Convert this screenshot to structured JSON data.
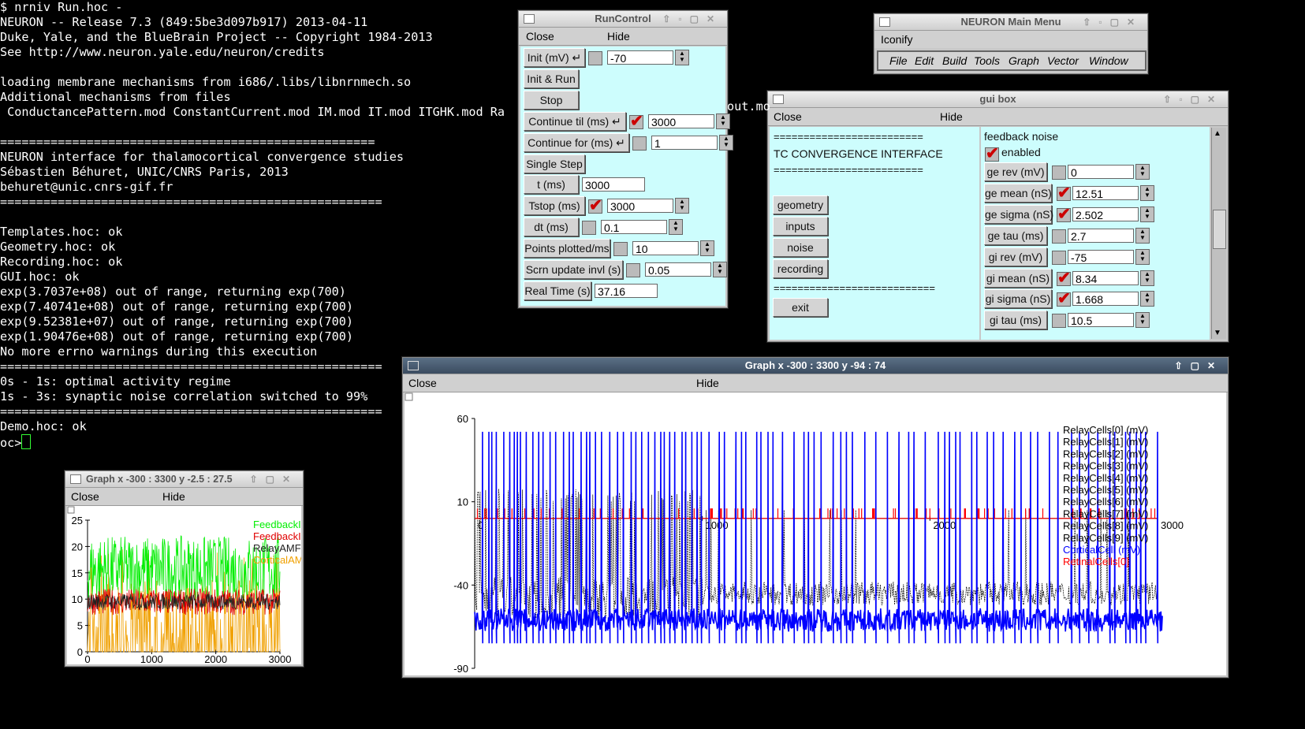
{
  "terminal": {
    "lines": [
      "$ nrniv Run.hoc -",
      "NEURON -- Release 7.3 (849:5be3d097b917) 2013-04-11",
      "Duke, Yale, and the BlueBrain Project -- Copyright 1984-2013",
      "See http://www.neuron.yale.edu/neuron/credits",
      "",
      "loading membrane mechanisms from i686/.libs/libnrnmech.so",
      "Additional mechanisms from files",
      " ConductancePattern.mod ConstantCurrent.mod IM.mod IT.mod ITGHK.mod Ra",
      "",
      "====================================================",
      "NEURON interface for thalamocortical convergence studies",
      "Sébastien Béhuret, UNIC/CNRS Paris, 2013",
      "behuret@unic.cnrs-gif.fr",
      "=====================================================",
      "",
      "Templates.hoc: ok",
      "Geometry.hoc: ok",
      "Recording.hoc: ok",
      "GUI.hoc: ok",
      "exp(3.7037e+08) out of range, returning exp(700)",
      "exp(7.40741e+08) out of range, returning exp(700)",
      "exp(9.52381e+07) out of range, returning exp(700)",
      "exp(1.90476e+08) out of range, returning exp(700)",
      "No more errno warnings during this execution",
      "=====================================================",
      "0s - 1s: optimal activity regime",
      "1s - 3s: synaptic noise correlation switched to 99%",
      "=====================================================",
      "Demo.hoc: ok"
    ],
    "prompt": "oc>",
    "overflow_text": "out.mo"
  },
  "run_control": {
    "title": "RunControl",
    "close": "Close",
    "hide": "Hide",
    "rows": [
      {
        "label": "Init (mV) ↵",
        "value": "-70",
        "check": false
      },
      {
        "label": "Init & Run"
      },
      {
        "label": "Stop"
      },
      {
        "label": "Continue til (ms) ↵",
        "value": "3000",
        "check": true
      },
      {
        "label": "Continue for (ms) ↵",
        "value": "1",
        "check": false
      },
      {
        "label": "Single Step"
      },
      {
        "label": "t (ms)",
        "value": "3000"
      },
      {
        "label": "Tstop (ms)",
        "value": "3000",
        "check": true
      },
      {
        "label": "dt (ms)",
        "value": "0.1",
        "check": false
      },
      {
        "label": "Points plotted/ms",
        "value": "10",
        "check": false
      },
      {
        "label": "Scrn update invl (s)",
        "value": "0.05",
        "check": false
      },
      {
        "label": "Real Time (s)",
        "value": "37.16"
      }
    ]
  },
  "main_menu": {
    "title": "NEURON Main Menu",
    "iconify": "Iconify",
    "items": [
      "File",
      "Edit",
      "Build",
      "Tools",
      "Graph",
      "Vector",
      "Window"
    ]
  },
  "gui_box": {
    "title": "gui box",
    "close": "Close",
    "hide": "Hide",
    "sep": "=========================",
    "sep2": "===========================",
    "heading": "TC CONVERGENCE INTERFACE",
    "buttons": [
      "geometry",
      "inputs",
      "noise",
      "recording"
    ],
    "exit": "exit",
    "noise_title": "feedback noise",
    "enabled": "enabled",
    "params": [
      {
        "label": "ge rev (mV)",
        "value": "0",
        "check": false
      },
      {
        "label": "ge mean (nS)",
        "value": "12.51",
        "check": true
      },
      {
        "label": "ge sigma (nS)",
        "value": "2.502",
        "check": true
      },
      {
        "label": "ge tau (ms)",
        "value": "2.7",
        "check": false
      },
      {
        "label": "gi rev (mV)",
        "value": "-75",
        "check": false
      },
      {
        "label": "gi mean (nS)",
        "value": "8.34",
        "check": true
      },
      {
        "label": "gi sigma (nS)",
        "value": "1.668",
        "check": true
      },
      {
        "label": "gi tau (ms)",
        "value": "10.5",
        "check": false
      }
    ]
  },
  "graph_small": {
    "title": "Graph  x -300 : 3300  y -2.5 : 27.5",
    "close": "Close",
    "hide": "Hide",
    "y_ticks": [
      "25",
      "20",
      "15",
      "10",
      "5",
      "0"
    ],
    "x_ticks": [
      "0",
      "1000",
      "2000",
      "3000"
    ],
    "legend": [
      "FeedbackI",
      "FeedbackI",
      "RelayAMF",
      "CorticalAM"
    ],
    "colors": {
      "green": "#00ee00",
      "red": "#e00000",
      "black": "#222222",
      "orange": "#f0a000"
    }
  },
  "graph_large": {
    "title": "Graph  x -300 : 3300  y -94 : 74",
    "close": "Close",
    "hide": "Hide",
    "y_ticks": [
      "60",
      "10",
      "-40",
      "-90"
    ],
    "x_ticks": [
      "0",
      "1000",
      "2000",
      "3000"
    ],
    "legend": [
      "RelayCells[0] (mV)",
      "RelayCells[1] (mV)",
      "RelayCells[2] (mV)",
      "RelayCells[3] (mV)",
      "RelayCells[4] (mV)",
      "RelayCells[5] (mV)",
      "RelayCells[6] (mV)",
      "RelayCells[7] (mV)",
      "RelayCells[8] (mV)",
      "RelayCells[9] (mV)",
      "CorticalCell (mV)",
      "RetinalCells[0]"
    ],
    "colors": {
      "blue": "#0000ff",
      "red": "#ff0000",
      "black": "#000000"
    }
  }
}
